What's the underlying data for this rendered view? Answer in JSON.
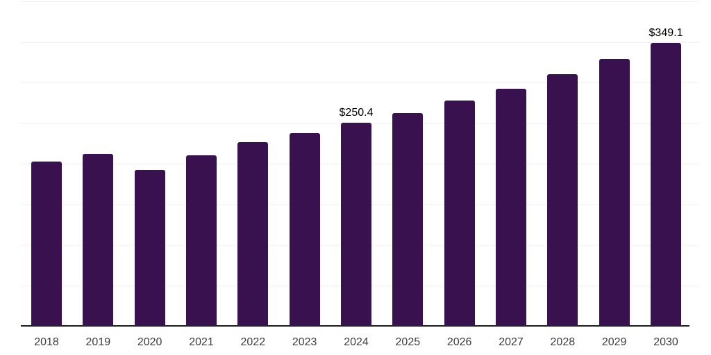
{
  "chart_data": {
    "type": "bar",
    "title": "",
    "xlabel": "",
    "ylabel": "",
    "categories": [
      "2018",
      "2019",
      "2020",
      "2021",
      "2022",
      "2023",
      "2024",
      "2025",
      "2026",
      "2027",
      "2028",
      "2029",
      "2030"
    ],
    "values": [
      202.4,
      212.3,
      192.2,
      210.6,
      226.3,
      237.9,
      250.4,
      262.6,
      277.6,
      292.4,
      310.0,
      329.3,
      349.1
    ],
    "point_labels": [
      "",
      "",
      "",
      "",
      "",
      "",
      "$250.4",
      "",
      "",
      "",
      "",
      "",
      "$349.1"
    ],
    "ylim": [
      0,
      400
    ],
    "grid_step": 50,
    "grid": true,
    "y_tick_labels_visible": false,
    "legend_position": "none",
    "colors": {
      "bar": "#38114E",
      "grid": "#efefef",
      "axis": "#1c1c1c",
      "tick_label": "#3d3d3d",
      "value_label": "#000000",
      "background": "#ffffff"
    }
  }
}
